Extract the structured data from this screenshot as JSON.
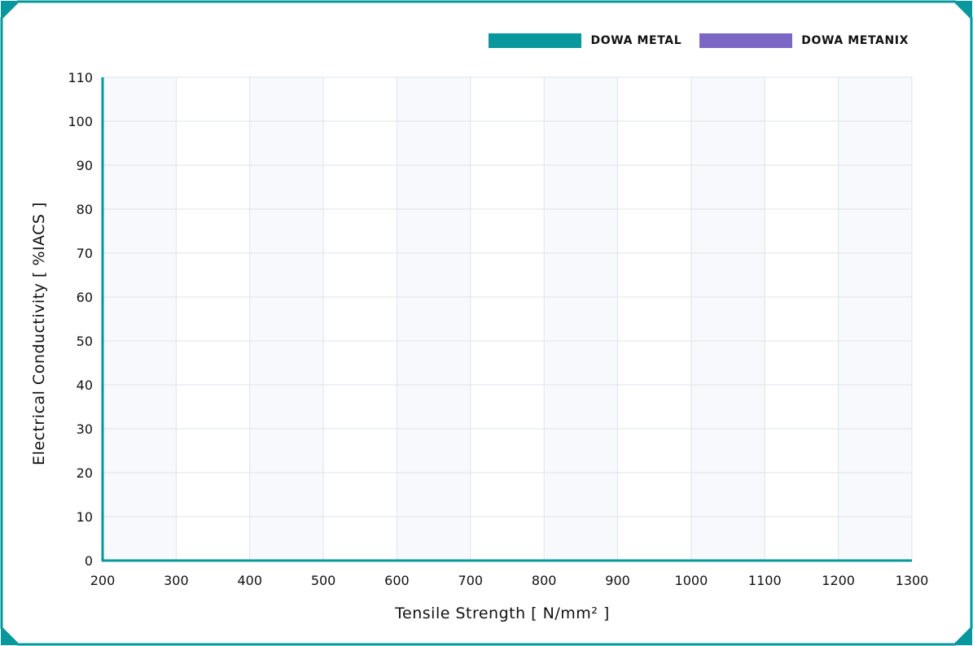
{
  "colors": {
    "accent": "#08979c",
    "frame_corner": "#08979c",
    "band_shade": "#f7f9fc",
    "grid": "#dfe3ea",
    "series_1": "#08979c",
    "series_2": "#7b68c5"
  },
  "legend": {
    "items": [
      {
        "label": "DOWA METAL",
        "color": "#08979c"
      },
      {
        "label": "DOWA METANIX",
        "color": "#7b68c5"
      }
    ]
  },
  "chart_data": {
    "type": "scatter",
    "title": "",
    "xlabel": "Tensile Strength [ N/mm² ]",
    "ylabel": "Electrical Conductivity [ %IACS ]",
    "xlim": [
      200,
      1300
    ],
    "ylim": [
      0,
      110
    ],
    "x_ticks": [
      "200",
      "300",
      "400",
      "500",
      "600",
      "700",
      "800",
      "900",
      "1000",
      "1100",
      "1200",
      "1300"
    ],
    "y_ticks": [
      "0",
      "10",
      "20",
      "30",
      "40",
      "50",
      "60",
      "70",
      "80",
      "90",
      "100",
      "110"
    ],
    "grid": true,
    "legend_position": "top-right",
    "series": [
      {
        "name": "DOWA METAL",
        "color": "#08979c",
        "points": []
      },
      {
        "name": "DOWA METANIX",
        "color": "#7b68c5",
        "points": []
      }
    ]
  }
}
